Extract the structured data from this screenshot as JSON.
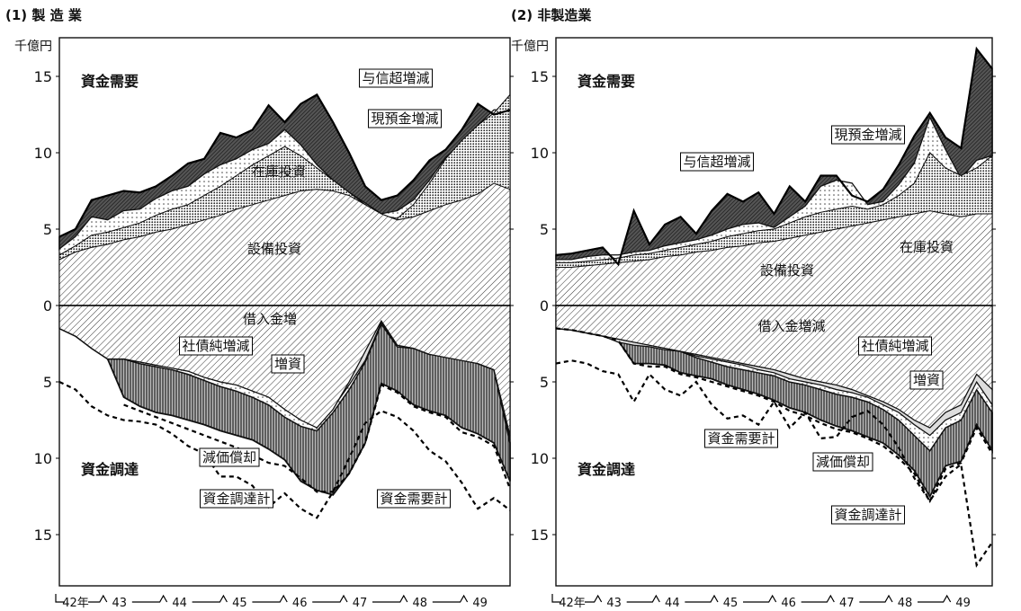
{
  "chart_data": [
    {
      "type": "area",
      "title": "(1) 製 造 業",
      "unit": "千億円",
      "y_ticks": [
        "15",
        "10",
        "5",
        "0",
        "5",
        "10",
        "15"
      ],
      "x_ticks": [
        "42年",
        "43",
        "44",
        "45",
        "46",
        "47",
        "48",
        "49"
      ],
      "ylim": [
        -18,
        17
      ],
      "x": [
        0,
        1,
        2,
        3,
        4,
        5,
        6,
        7,
        8,
        9,
        10,
        11,
        12,
        13,
        14,
        15,
        16,
        17,
        18,
        19,
        20,
        21,
        22,
        23,
        24,
        25,
        26,
        27,
        28
      ],
      "demand_label": "資金需要",
      "supply_label": "資金調達",
      "demand_series": [
        {
          "name": "設備投資",
          "values": [
            3.0,
            3.5,
            3.8,
            4.0,
            4.3,
            4.5,
            4.8,
            5.0,
            5.3,
            5.6,
            5.9,
            6.3,
            6.6,
            6.9,
            7.2,
            7.5,
            7.6,
            7.5,
            7.2,
            6.6,
            6.0,
            5.6,
            5.8,
            6.2,
            6.6,
            6.9,
            7.3,
            8.0,
            7.6
          ]
        },
        {
          "name": "在庫投資",
          "values": [
            3.3,
            3.9,
            4.6,
            4.8,
            5.1,
            5.4,
            5.9,
            6.3,
            6.6,
            7.2,
            7.8,
            8.5,
            9.2,
            9.8,
            10.4,
            9.8,
            9.0,
            8.2,
            7.4,
            6.6,
            5.9,
            5.7,
            6.6,
            8.0,
            9.6,
            10.8,
            11.8,
            12.6,
            13.8
          ]
        },
        {
          "name": "現預金増減",
          "values": [
            3.7,
            4.5,
            5.8,
            5.6,
            6.2,
            6.3,
            7.0,
            7.5,
            7.8,
            8.6,
            9.2,
            9.6,
            10.2,
            10.6,
            11.5,
            10.5,
            9.2,
            8.2,
            7.4,
            6.7,
            6.0,
            6.2,
            6.9,
            8.2,
            9.7,
            10.6,
            11.8,
            12.8,
            12.8
          ]
        },
        {
          "name": "与信超増減",
          "values": [
            4.5,
            5.0,
            6.9,
            7.2,
            7.5,
            7.4,
            7.8,
            8.5,
            9.3,
            9.6,
            11.3,
            11.0,
            11.5,
            13.1,
            12.0,
            13.2,
            13.8,
            12.0,
            10.0,
            7.8,
            6.9,
            7.2,
            8.2,
            9.5,
            10.2,
            11.5,
            13.2,
            12.5,
            12.8
          ]
        }
      ],
      "supply_series": [
        {
          "name": "借入金増",
          "values": [
            1.5,
            2.0,
            2.8,
            3.5,
            3.5,
            3.7,
            3.9,
            4.1,
            4.3,
            4.7,
            5.0,
            5.2,
            5.6,
            6.0,
            6.8,
            7.5,
            8.0,
            6.8,
            5.0,
            3.0,
            1.0,
            2.6,
            2.8,
            3.2,
            3.4,
            3.6,
            3.8,
            4.2,
            8.5
          ]
        },
        {
          "name": "社債純増減",
          "values": [
            1.5,
            2.0,
            2.8,
            3.5,
            3.5,
            3.7,
            3.9,
            4.0,
            4.2,
            4.6,
            4.9,
            5.1,
            5.4,
            5.8,
            6.5,
            7.4,
            7.8,
            6.7,
            5.2,
            3.6,
            1.1,
            2.6,
            2.6,
            3.0,
            3.1,
            3.3,
            3.6,
            4.0,
            8.8
          ]
        },
        {
          "name": "増資",
          "values": [
            1.5,
            2.0,
            2.8,
            3.5,
            3.5,
            3.8,
            4.0,
            4.2,
            4.5,
            4.9,
            5.3,
            5.6,
            6.0,
            6.5,
            7.3,
            7.9,
            8.2,
            7.0,
            5.5,
            3.7,
            1.2,
            2.7,
            2.8,
            3.2,
            3.2,
            3.4,
            3.8,
            4.2,
            9.0
          ]
        },
        {
          "name": "減価償却",
          "values": [
            1.5,
            2.0,
            2.8,
            3.5,
            6.0,
            6.6,
            7.0,
            7.2,
            7.5,
            7.8,
            8.2,
            8.5,
            8.8,
            9.4,
            10.1,
            11.5,
            12.1,
            12.4,
            11.0,
            9.0,
            5.1,
            5.6,
            6.5,
            6.9,
            7.2,
            8.0,
            8.4,
            9.0,
            11.5
          ]
        }
      ],
      "total_series": [
        {
          "name": "資金調達計",
          "values": [
            null,
            null,
            null,
            null,
            6.5,
            6.9,
            7.3,
            7.7,
            8.1,
            8.5,
            8.9,
            9.3,
            9.8,
            10.3,
            10.5,
            11.3,
            12.2,
            12.2,
            11.0,
            9.0,
            5.2,
            5.7,
            6.6,
            7.0,
            7.3,
            8.3,
            8.6,
            9.2,
            12.0
          ]
        },
        {
          "name": "資金需要計",
          "values": [
            5.0,
            5.5,
            6.6,
            7.2,
            7.5,
            7.6,
            7.8,
            8.4,
            9.2,
            9.7,
            11.2,
            11.2,
            11.8,
            13.2,
            12.3,
            13.3,
            13.9,
            12.2,
            10.0,
            7.7,
            6.9,
            7.3,
            8.2,
            9.5,
            10.2,
            11.6,
            13.3,
            12.6,
            13.4
          ]
        }
      ],
      "demand_labels": {
        "設備投資": "設備投資",
        "在庫投資": "在庫投資",
        "現預金増減": "現預金増減",
        "与信超増減": "与信超増減"
      },
      "supply_labels": {
        "借入金増": "借入金増",
        "社債純増減": "社債純増減",
        "増資": "増資",
        "減価償却": "減価償却"
      },
      "total_labels": {
        "資金調達計": "資金調達計",
        "資金需要計": "資金需要計"
      }
    },
    {
      "type": "area",
      "title": "(2) 非製造業",
      "unit": "千億円",
      "y_ticks": [
        "15",
        "10",
        "5",
        "0",
        "5",
        "10",
        "15"
      ],
      "x_ticks": [
        "42年",
        "43",
        "44",
        "45",
        "46",
        "47",
        "48",
        "49"
      ],
      "ylim": [
        -18,
        17
      ],
      "x": [
        0,
        1,
        2,
        3,
        4,
        5,
        6,
        7,
        8,
        9,
        10,
        11,
        12,
        13,
        14,
        15,
        16,
        17,
        18,
        19,
        20,
        21,
        22,
        23,
        24,
        25,
        26,
        27,
        28
      ],
      "demand_label": "資金需要",
      "supply_label": "資金調達",
      "demand_series": [
        {
          "name": "設備投資",
          "values": [
            2.5,
            2.5,
            2.6,
            2.7,
            2.8,
            2.9,
            3.0,
            3.2,
            3.3,
            3.5,
            3.6,
            3.8,
            3.9,
            4.1,
            4.2,
            4.4,
            4.6,
            4.8,
            5.0,
            5.2,
            5.4,
            5.6,
            5.8,
            6.0,
            6.2,
            6.0,
            5.8,
            6.0,
            6.0
          ]
        },
        {
          "name": "在庫投資",
          "values": [
            2.8,
            2.8,
            2.9,
            3.0,
            3.1,
            3.3,
            3.4,
            3.6,
            3.8,
            4.0,
            4.2,
            4.5,
            4.7,
            4.9,
            5.0,
            5.4,
            5.8,
            6.1,
            6.3,
            6.5,
            6.3,
            6.6,
            7.2,
            8.0,
            10.0,
            9.0,
            8.5,
            9.0,
            9.8
          ]
        },
        {
          "name": "現預金増減",
          "values": [
            3.0,
            3.0,
            3.2,
            3.3,
            3.3,
            3.5,
            3.6,
            3.9,
            4.1,
            4.3,
            4.6,
            5.0,
            5.3,
            5.4,
            5.1,
            5.8,
            6.5,
            7.8,
            8.2,
            8.0,
            6.6,
            6.8,
            7.9,
            9.3,
            12.3,
            10.2,
            8.3,
            9.5,
            9.8
          ]
        },
        {
          "name": "与信超増減",
          "values": [
            3.3,
            3.4,
            3.6,
            3.8,
            2.7,
            6.2,
            4.0,
            5.3,
            5.8,
            4.7,
            6.2,
            7.3,
            6.8,
            7.4,
            6.0,
            7.8,
            6.8,
            8.5,
            8.5,
            7.2,
            6.8,
            7.6,
            9.2,
            11.1,
            12.6,
            11.0,
            10.3,
            16.8,
            15.5
          ]
        }
      ],
      "supply_series": [
        {
          "name": "借入金増減",
          "values": [
            1.5,
            1.6,
            1.8,
            2.0,
            2.2,
            2.4,
            2.6,
            2.8,
            3.0,
            3.2,
            3.4,
            3.6,
            3.8,
            4.0,
            4.2,
            4.5,
            4.8,
            5.0,
            5.2,
            5.5,
            5.9,
            6.3,
            6.8,
            7.5,
            8.0,
            7.0,
            6.5,
            4.5,
            5.5
          ]
        },
        {
          "name": "社債純増減",
          "values": [
            1.5,
            1.6,
            1.8,
            2.0,
            2.4,
            2.6,
            2.7,
            2.9,
            3.0,
            3.3,
            3.5,
            3.7,
            3.9,
            4.2,
            4.4,
            4.8,
            5.0,
            5.2,
            5.5,
            5.7,
            6.0,
            6.5,
            7.0,
            7.8,
            8.5,
            7.5,
            7.0,
            5.0,
            6.5
          ]
        },
        {
          "name": "増資",
          "values": [
            1.5,
            1.6,
            1.8,
            2.0,
            2.2,
            2.3,
            2.6,
            2.8,
            3.0,
            3.4,
            3.7,
            4.0,
            4.2,
            4.4,
            4.6,
            5.0,
            5.2,
            5.5,
            5.8,
            6.0,
            6.3,
            6.8,
            7.5,
            8.5,
            9.5,
            8.0,
            7.5,
            5.5,
            7.0
          ]
        },
        {
          "name": "減価償却",
          "values": [
            1.5,
            1.6,
            1.8,
            2.0,
            2.3,
            3.8,
            3.8,
            3.9,
            4.4,
            4.6,
            4.8,
            5.2,
            5.5,
            5.8,
            6.2,
            6.7,
            7.0,
            7.5,
            7.9,
            8.2,
            8.6,
            9.0,
            9.8,
            10.8,
            12.5,
            10.5,
            10.2,
            7.8,
            9.5
          ]
        }
      ],
      "total_series": [
        {
          "name": "資金調達計",
          "values": [
            1.5,
            1.6,
            1.8,
            2.0,
            2.3,
            3.8,
            4.0,
            4.0,
            4.5,
            4.7,
            5.0,
            5.3,
            5.6,
            5.9,
            6.3,
            6.9,
            7.2,
            7.7,
            8.1,
            8.3,
            8.7,
            9.2,
            10.0,
            11.0,
            12.8,
            10.7,
            10.3,
            8.0,
            9.7
          ]
        },
        {
          "name": "資金需要計",
          "values": [
            3.8,
            3.6,
            3.8,
            4.3,
            4.5,
            6.3,
            4.5,
            5.5,
            5.9,
            5.0,
            6.5,
            7.4,
            7.2,
            7.8,
            6.3,
            8.0,
            7.0,
            8.7,
            8.6,
            7.3,
            6.9,
            7.8,
            9.3,
            11.3,
            12.8,
            11.2,
            10.4,
            17.0,
            15.5
          ]
        }
      ],
      "demand_labels": {
        "設備投資": "設備投資",
        "在庫投資": "在庫投資",
        "現預金増減": "現預金増減",
        "与信超増減": "与信超増減"
      },
      "supply_labels": {
        "借入金増減": "借入金増減",
        "社債純増減": "社債純増減",
        "増資": "増資",
        "減価償却": "減価償却"
      },
      "total_labels": {
        "資金調達計": "資金調達計",
        "資金需要計": "資金需要計"
      }
    }
  ]
}
